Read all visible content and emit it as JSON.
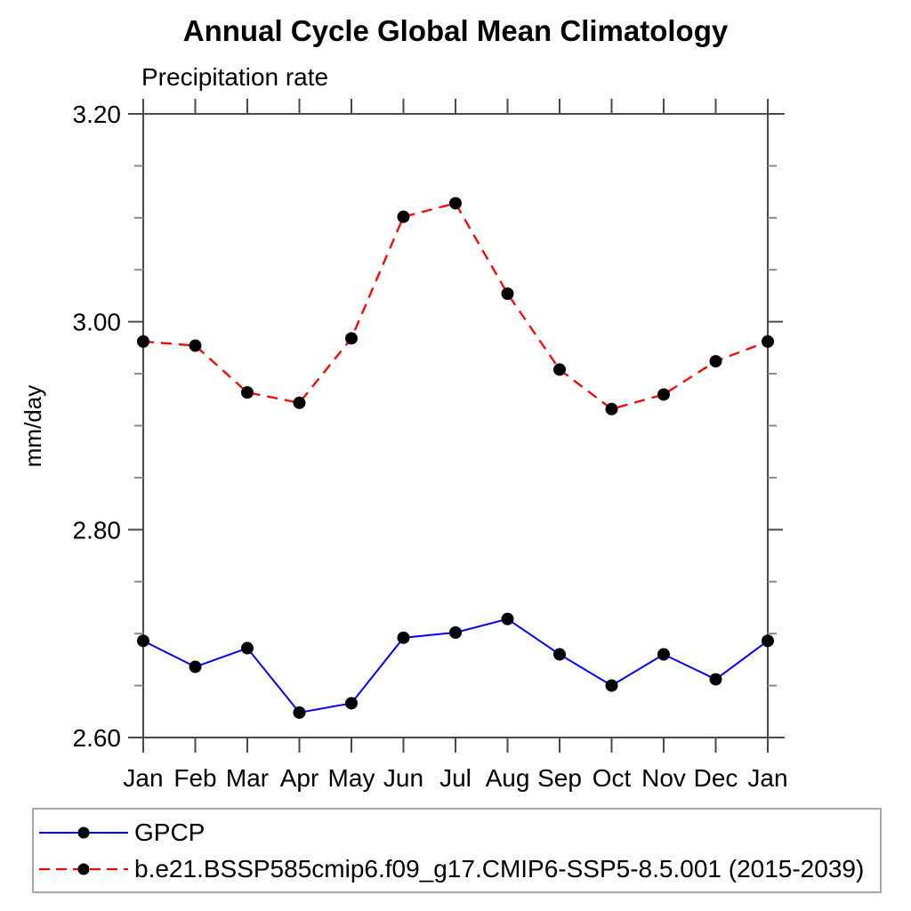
{
  "chart_data": {
    "type": "line",
    "title": "Annual Cycle Global Mean Climatology",
    "subtitle": "Precipitation rate",
    "ylabel": "mm/day",
    "xlabel": "",
    "categories": [
      "Jan",
      "Feb",
      "Mar",
      "Apr",
      "May",
      "Jun",
      "Jul",
      "Aug",
      "Sep",
      "Oct",
      "Nov",
      "Dec",
      "Jan"
    ],
    "series": [
      {
        "name": "GPCP",
        "color": "#0000ff",
        "line_style": "solid",
        "marker": "filled-circle",
        "marker_color": "#000000",
        "values": [
          2.693,
          2.668,
          2.686,
          2.624,
          2.633,
          2.696,
          2.701,
          2.714,
          2.68,
          2.65,
          2.68,
          2.656,
          2.693
        ]
      },
      {
        "name": "b.e21.BSSP585cmip6.f09_g17.CMIP6-SSP5-8.5.001 (2015-2039)",
        "color": "#ff0000",
        "line_style": "dashed",
        "marker": "filled-circle",
        "marker_color": "#000000",
        "values": [
          2.981,
          2.977,
          2.932,
          2.922,
          2.984,
          3.101,
          3.114,
          3.027,
          2.954,
          2.916,
          2.93,
          2.962,
          2.981
        ]
      }
    ],
    "ylim": [
      2.6,
      3.2
    ],
    "yticks_major": [
      2.6,
      2.8,
      3.0,
      3.2
    ],
    "ytick_labels": [
      "2.60",
      "2.80",
      "3.00",
      "3.20"
    ],
    "yminor_step": 0.05,
    "grid": false,
    "legend_position": "bottom-left-box",
    "axis_color": "#4a4a4a",
    "minor_tick_color": "#8a8a8a"
  }
}
